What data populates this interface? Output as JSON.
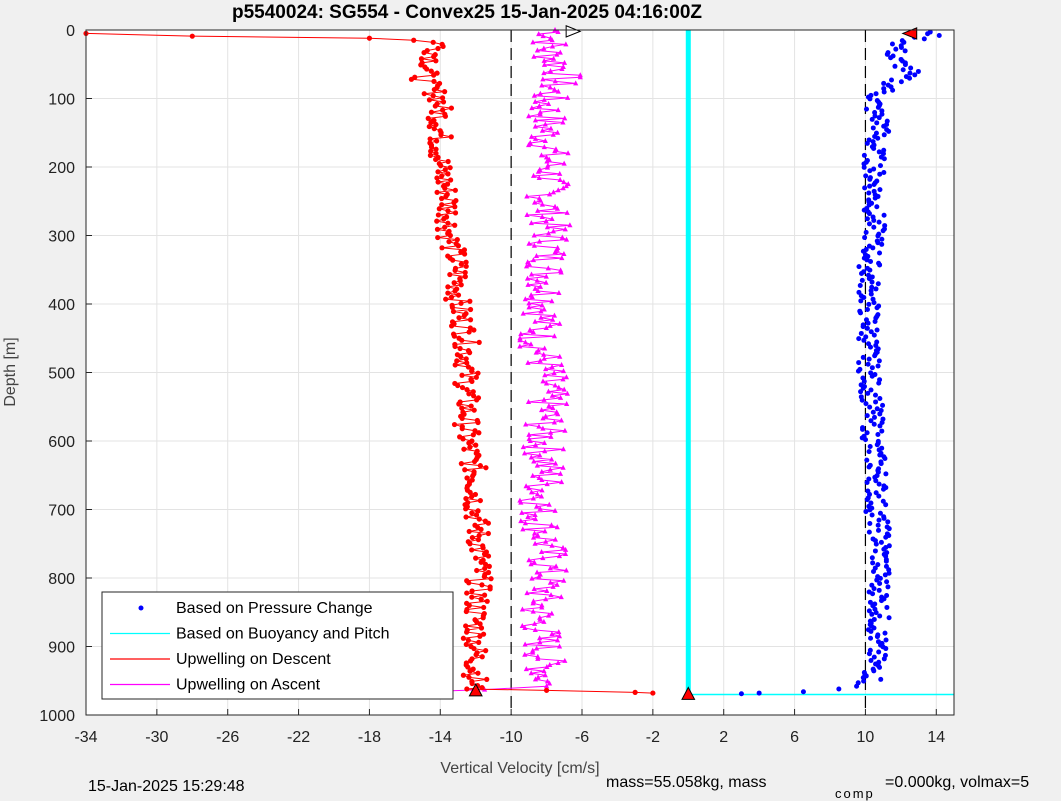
{
  "chart_data": {
    "type": "scatter",
    "title": "p5540024: SG554 - Convex25 15-Jan-2025 04:16:00Z",
    "xlabel": "Vertical Velocity [cm/s]",
    "ylabel": "Depth [m]",
    "xlim": [
      -34,
      15
    ],
    "ylim": [
      1000,
      0
    ],
    "y_reversed": true,
    "xticks": [
      -34,
      -30,
      -26,
      -22,
      -18,
      -14,
      -10,
      -6,
      -2,
      2,
      6,
      10,
      14
    ],
    "yticks": [
      0,
      100,
      200,
      300,
      400,
      500,
      600,
      700,
      800,
      900,
      1000
    ],
    "grid": true,
    "legend_position": "bottom-left",
    "reference_lines_x": [
      -10,
      10
    ],
    "max_depth": 970,
    "series": [
      {
        "name": "Based on Pressure Change",
        "color": "#0000ff",
        "marker": "dot",
        "profile": [
          [
            5,
            14
          ],
          [
            20,
            12
          ],
          [
            40,
            11.5
          ],
          [
            60,
            12.5
          ],
          [
            80,
            11.5
          ],
          [
            100,
            10.5
          ],
          [
            120,
            10.5
          ],
          [
            140,
            11
          ],
          [
            160,
            10.5
          ],
          [
            200,
            10.5
          ],
          [
            250,
            10.5
          ],
          [
            300,
            10.5
          ],
          [
            350,
            10.2
          ],
          [
            400,
            10.2
          ],
          [
            450,
            10.2
          ],
          [
            500,
            10.2
          ],
          [
            550,
            10.4
          ],
          [
            600,
            10.4
          ],
          [
            650,
            10.7
          ],
          [
            700,
            10.6
          ],
          [
            750,
            10.9
          ],
          [
            800,
            10.8
          ],
          [
            850,
            10.8
          ],
          [
            900,
            10.6
          ],
          [
            950,
            10.4
          ],
          [
            958,
            9.5
          ],
          [
            962,
            8.5
          ],
          [
            966,
            6.5
          ],
          [
            968,
            4
          ],
          [
            969,
            3
          ]
        ]
      },
      {
        "name": "Based on Buoyancy and Pitch",
        "color": "#00ffff",
        "x_constant": 0,
        "depth_range": [
          0,
          970
        ],
        "bottom_segment": {
          "depth": 970,
          "x_range": [
            0,
            15
          ]
        }
      },
      {
        "name": "Upwelling on Descent",
        "color": "#ff0000",
        "marker": "dot",
        "surface_segment": [
          [
            -34,
            5
          ],
          [
            -28,
            9
          ],
          [
            -18,
            12
          ],
          [
            -15.5,
            15
          ]
        ],
        "profile": [
          [
            20,
            -14
          ],
          [
            50,
            -14.5
          ],
          [
            70,
            -15
          ],
          [
            100,
            -14
          ],
          [
            150,
            -14
          ],
          [
            200,
            -14
          ],
          [
            250,
            -13.5
          ],
          [
            300,
            -13.5
          ],
          [
            350,
            -13
          ],
          [
            400,
            -13
          ],
          [
            450,
            -12.5
          ],
          [
            500,
            -12.5
          ],
          [
            550,
            -12.5
          ],
          [
            600,
            -12.5
          ],
          [
            650,
            -12
          ],
          [
            700,
            -12
          ],
          [
            750,
            -11.8
          ],
          [
            800,
            -11.8
          ],
          [
            850,
            -12
          ],
          [
            900,
            -12
          ],
          [
            950,
            -12
          ],
          [
            962,
            -12.2
          ]
        ],
        "bottom_segment": [
          [
            -12.5,
            962
          ],
          [
            -8,
            964
          ],
          [
            -3,
            967
          ],
          [
            -2,
            968
          ]
        ]
      },
      {
        "name": "Upwelling on Ascent",
        "color": "#ff00ff",
        "marker": "triangle",
        "profile": [
          [
            5,
            -7.5
          ],
          [
            30,
            -8
          ],
          [
            60,
            -7
          ],
          [
            100,
            -8
          ],
          [
            150,
            -8
          ],
          [
            200,
            -7.8
          ],
          [
            250,
            -8
          ],
          [
            300,
            -7.8
          ],
          [
            350,
            -8
          ],
          [
            400,
            -8
          ],
          [
            450,
            -8.5
          ],
          [
            500,
            -8
          ],
          [
            550,
            -8
          ],
          [
            600,
            -8.2
          ],
          [
            650,
            -8
          ],
          [
            700,
            -8.5
          ],
          [
            750,
            -8
          ],
          [
            800,
            -8
          ],
          [
            850,
            -8.5
          ],
          [
            900,
            -8.2
          ],
          [
            950,
            -8
          ]
        ],
        "bottom_segment": [
          [
            -8,
            958
          ],
          [
            -11.5,
            963
          ],
          [
            -15,
            966
          ]
        ]
      }
    ],
    "reference_markers": [
      {
        "x": 12.5,
        "depth": 5,
        "shape": "triangle-left",
        "fill": "#ff0000"
      },
      {
        "x": -6.5,
        "depth": 2,
        "shape": "triangle-right",
        "fill": "#ffffff"
      },
      {
        "x": 0,
        "depth": 970,
        "shape": "triangle-up",
        "fill": "#ff0000"
      },
      {
        "x": -12,
        "depth": 965,
        "shape": "triangle-up",
        "fill": "#ff0000"
      }
    ]
  },
  "footer": {
    "timestamp": "15-Jan-2025 15:29:48",
    "mass_text": "mass=55.058kg, mass",
    "comp_sub": "comp",
    "comp_text": "=0.000kg, volmax=5"
  }
}
